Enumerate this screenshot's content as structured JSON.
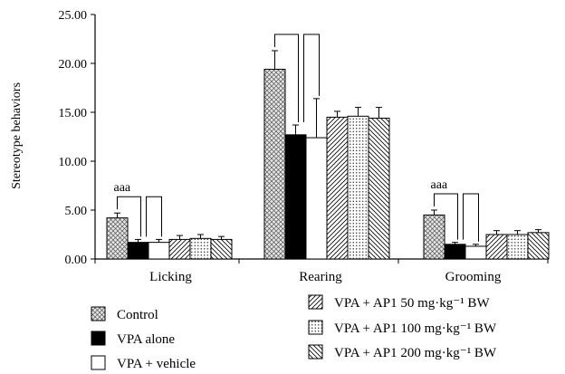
{
  "chart_data": {
    "type": "bar",
    "title": "",
    "xlabel": "",
    "ylabel": "Stereotype behaviors",
    "ylim": [
      0,
      25
    ],
    "yticks": [
      "0.00",
      "5.00",
      "10.00",
      "15.00",
      "20.00",
      "25.00"
    ],
    "categories": [
      "Licking",
      "Rearing",
      "Grooming"
    ],
    "series": [
      {
        "name": "Control",
        "pattern": "crosshatch",
        "values": [
          4.2,
          19.4,
          4.5
        ],
        "errors": [
          0.5,
          1.9,
          0.5
        ]
      },
      {
        "name": "VPA alone",
        "pattern": "solid",
        "values": [
          1.7,
          12.7,
          1.5
        ],
        "errors": [
          0.3,
          1.0,
          0.2
        ]
      },
      {
        "name": "VPA + vehicle",
        "pattern": "open",
        "values": [
          1.7,
          12.4,
          1.3
        ],
        "errors": [
          0.3,
          4.0,
          0.2
        ]
      },
      {
        "name": "VPA + AP1 50 mg·kg⁻¹ BW",
        "pattern": "diag-right",
        "values": [
          2.0,
          14.5,
          2.5
        ],
        "errors": [
          0.4,
          0.6,
          0.4
        ]
      },
      {
        "name": "VPA + AP1 100 mg·kg⁻¹ BW",
        "pattern": "dots",
        "values": [
          2.1,
          14.6,
          2.5
        ],
        "errors": [
          0.4,
          0.9,
          0.4
        ]
      },
      {
        "name": "VPA + AP1 200 mg·kg⁻¹ BW",
        "pattern": "diag-left",
        "values": [
          2.0,
          14.4,
          2.7
        ],
        "errors": [
          0.3,
          1.1,
          0.3
        ]
      }
    ],
    "annotations": [
      {
        "category": "Licking",
        "text": "aaa"
      },
      {
        "category": "Rearing",
        "text": ""
      },
      {
        "category": "Grooming",
        "text": "aaa"
      }
    ],
    "grid": false,
    "legend_position": "bottom"
  }
}
